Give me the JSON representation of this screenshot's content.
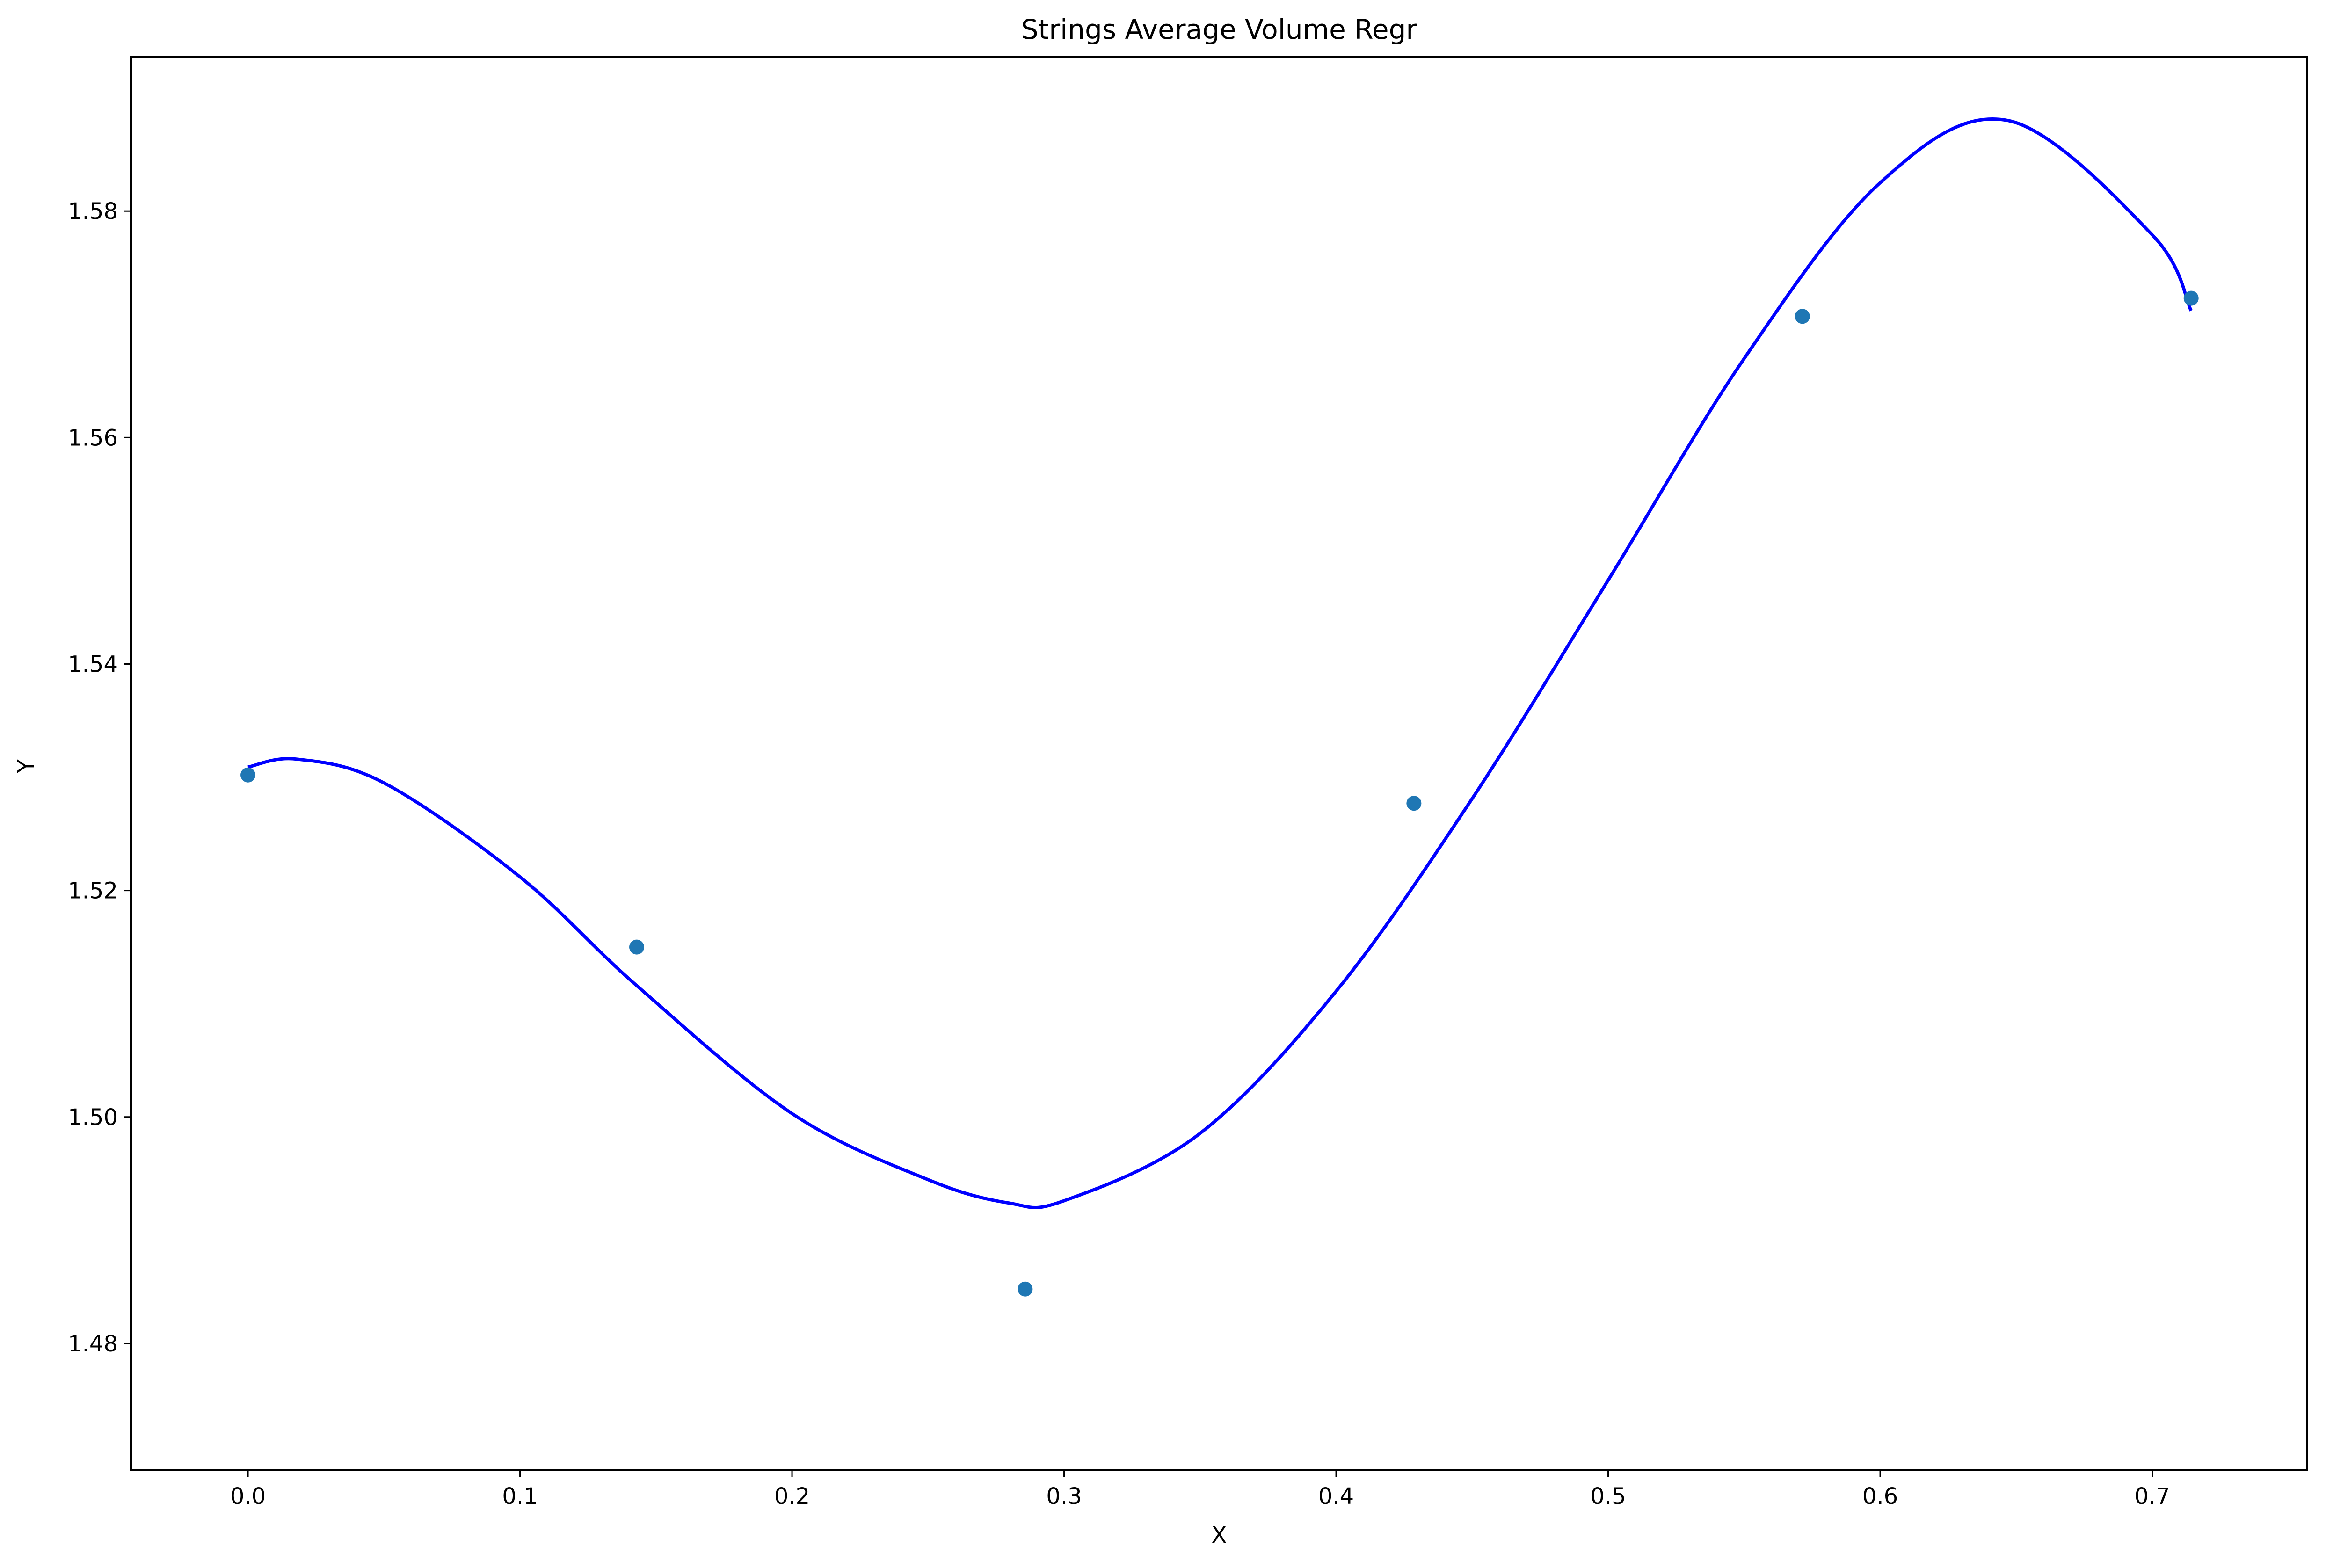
{
  "chart_data": {
    "type": "scatter",
    "title": "Strings Average Volume Regr",
    "xlabel": "X",
    "ylabel": "Y",
    "xlim": [
      -0.043,
      0.757
    ],
    "ylim": [
      1.4688,
      1.5936
    ],
    "xticks": [
      0.0,
      0.1,
      0.2,
      0.3,
      0.4,
      0.5,
      0.6,
      0.7
    ],
    "xtick_labels": [
      "0.0",
      "0.1",
      "0.2",
      "0.3",
      "0.4",
      "0.5",
      "0.6",
      "0.7"
    ],
    "yticks": [
      1.48,
      1.5,
      1.52,
      1.54,
      1.56,
      1.58
    ],
    "ytick_labels": [
      "1.48",
      "1.50",
      "1.52",
      "1.54",
      "1.56",
      "1.58"
    ],
    "grid": false,
    "legend": "none",
    "series": [
      {
        "kind": "scatter",
        "color": "#1f77b4",
        "x": [
          0.0,
          0.1429,
          0.2857,
          0.4286,
          0.5714,
          0.7143
        ],
        "y": [
          1.5302,
          1.515,
          1.4848,
          1.5277,
          1.5707,
          1.5723
        ]
      },
      {
        "kind": "line",
        "color": "#0000ff",
        "x": [
          0.0,
          0.0179,
          0.05,
          0.1,
          0.1429,
          0.2,
          0.2496,
          0.2796,
          0.3,
          0.3497,
          0.4,
          0.4497,
          0.5,
          0.5498,
          0.6,
          0.6469,
          0.7,
          0.7143
        ],
        "y": [
          1.5309,
          1.5316,
          1.5295,
          1.5212,
          1.5116,
          1.5003,
          1.4945,
          1.4924,
          1.4926,
          1.4985,
          1.5111,
          1.528,
          1.5474,
          1.5669,
          1.5825,
          1.588,
          1.5779,
          1.5712
        ]
      }
    ]
  }
}
